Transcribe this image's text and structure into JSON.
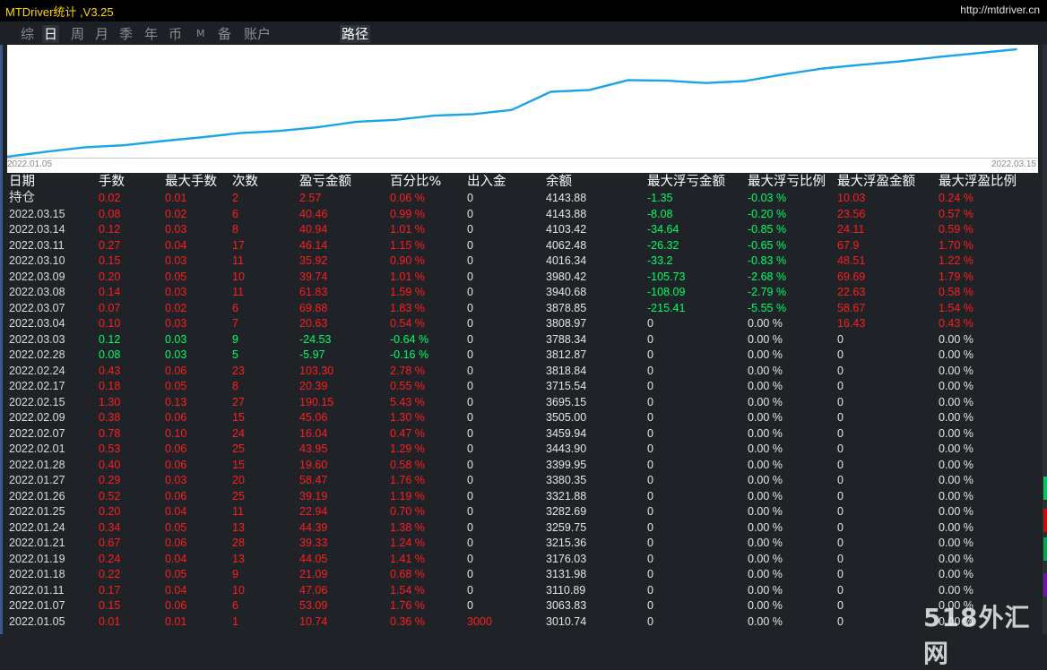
{
  "window": {
    "title": "MTDriver统计 ,V3.25",
    "url": "http://mtdriver.cn"
  },
  "tabs": [
    {
      "label": "综",
      "active": false
    },
    {
      "label": "日",
      "active": true
    },
    {
      "label": "周",
      "active": false
    },
    {
      "label": "月",
      "active": false
    },
    {
      "label": "季",
      "active": false
    },
    {
      "label": "年",
      "active": false
    },
    {
      "label": "币",
      "active": false
    },
    {
      "label": "M",
      "active": false
    },
    {
      "label": "备",
      "active": false
    },
    {
      "label": "账户",
      "active": false
    },
    {
      "label": "路径",
      "active": true
    }
  ],
  "chart_data": {
    "type": "line",
    "x": [
      "2022.01.05",
      "2022.01.07",
      "2022.01.11",
      "2022.01.18",
      "2022.01.19",
      "2022.01.21",
      "2022.01.24",
      "2022.01.25",
      "2022.01.26",
      "2022.01.27",
      "2022.01.28",
      "2022.02.01",
      "2022.02.07",
      "2022.02.09",
      "2022.02.15",
      "2022.02.17",
      "2022.02.24",
      "2022.02.28",
      "2022.03.03",
      "2022.03.04",
      "2022.03.07",
      "2022.03.08",
      "2022.03.09",
      "2022.03.10",
      "2022.03.11",
      "2022.03.14",
      "2022.03.15"
    ],
    "series": [
      {
        "values": [
          3010.74,
          3063.83,
          3110.89,
          3131.98,
          3176.03,
          3215.36,
          3259.75,
          3282.69,
          3321.88,
          3380.35,
          3399.95,
          3443.9,
          3459.94,
          3505.0,
          3695.15,
          3715.54,
          3818.84,
          3812.87,
          3788.34,
          3808.97,
          3878.85,
          3940.68,
          3980.42,
          4016.34,
          4062.48,
          4103.42,
          4143.88
        ],
        "color": "#1aa3e8"
      }
    ],
    "start_label": "2022.01.05",
    "end_label": "2022.03.15",
    "grid": false
  },
  "table": {
    "headers": [
      "日期",
      "手数",
      "最大手数",
      "次数",
      "盈亏金额",
      "百分比%",
      "出入金",
      "余额",
      "最大浮亏金额",
      "最大浮亏比例",
      "最大浮盈金额",
      "最大浮盈比例"
    ],
    "rows": [
      [
        "持仓",
        "0.02",
        "0.01",
        "2",
        "2.57",
        "0.06 %",
        "0",
        "4143.88",
        "-1.35",
        "-0.03 %",
        "10.03",
        "0.24 %"
      ],
      [
        "2022.03.15",
        "0.08",
        "0.02",
        "6",
        "40.46",
        "0.99 %",
        "0",
        "4143.88",
        "-8.08",
        "-0.20 %",
        "23.56",
        "0.57 %"
      ],
      [
        "2022.03.14",
        "0.12",
        "0.03",
        "8",
        "40.94",
        "1.01 %",
        "0",
        "4103.42",
        "-34.64",
        "-0.85 %",
        "24.11",
        "0.59 %"
      ],
      [
        "2022.03.11",
        "0.27",
        "0.04",
        "17",
        "46.14",
        "1.15 %",
        "0",
        "4062.48",
        "-26.32",
        "-0.65 %",
        "67.9",
        "1.70 %"
      ],
      [
        "2022.03.10",
        "0.15",
        "0.03",
        "11",
        "35.92",
        "0.90 %",
        "0",
        "4016.34",
        "-33.2",
        "-0.83 %",
        "48.51",
        "1.22 %"
      ],
      [
        "2022.03.09",
        "0.20",
        "0.05",
        "10",
        "39.74",
        "1.01 %",
        "0",
        "3980.42",
        "-105.73",
        "-2.68 %",
        "69.69",
        "1.79 %"
      ],
      [
        "2022.03.08",
        "0.14",
        "0.03",
        "11",
        "61.83",
        "1.59 %",
        "0",
        "3940.68",
        "-108.09",
        "-2.79 %",
        "22.63",
        "0.58 %"
      ],
      [
        "2022.03.07",
        "0.07",
        "0.02",
        "6",
        "69.88",
        "1.83 %",
        "0",
        "3878.85",
        "-215.41",
        "-5.55 %",
        "58.67",
        "1.54 %"
      ],
      [
        "2022.03.04",
        "0.10",
        "0.03",
        "7",
        "20.63",
        "0.54 %",
        "0",
        "3808.97",
        "0",
        "0.00 %",
        "16.43",
        "0.43 %"
      ],
      [
        "2022.03.03",
        "0.12",
        "0.03",
        "9",
        "-24.53",
        "-0.64 %",
        "0",
        "3788.34",
        "0",
        "0.00 %",
        "0",
        "0.00 %"
      ],
      [
        "2022.02.28",
        "0.08",
        "0.03",
        "5",
        "-5.97",
        "-0.16 %",
        "0",
        "3812.87",
        "0",
        "0.00 %",
        "0",
        "0.00 %"
      ],
      [
        "2022.02.24",
        "0.43",
        "0.06",
        "23",
        "103.30",
        "2.78 %",
        "0",
        "3818.84",
        "0",
        "0.00 %",
        "0",
        "0.00 %"
      ],
      [
        "2022.02.17",
        "0.18",
        "0.05",
        "8",
        "20.39",
        "0.55 %",
        "0",
        "3715.54",
        "0",
        "0.00 %",
        "0",
        "0.00 %"
      ],
      [
        "2022.02.15",
        "1.30",
        "0.13",
        "27",
        "190.15",
        "5.43 %",
        "0",
        "3695.15",
        "0",
        "0.00 %",
        "0",
        "0.00 %"
      ],
      [
        "2022.02.09",
        "0.38",
        "0.06",
        "15",
        "45.06",
        "1.30 %",
        "0",
        "3505.00",
        "0",
        "0.00 %",
        "0",
        "0.00 %"
      ],
      [
        "2022.02.07",
        "0.78",
        "0.10",
        "24",
        "16.04",
        "0.47 %",
        "0",
        "3459.94",
        "0",
        "0.00 %",
        "0",
        "0.00 %"
      ],
      [
        "2022.02.01",
        "0.53",
        "0.06",
        "25",
        "43.95",
        "1.29 %",
        "0",
        "3443.90",
        "0",
        "0.00 %",
        "0",
        "0.00 %"
      ],
      [
        "2022.01.28",
        "0.40",
        "0.06",
        "15",
        "19.60",
        "0.58 %",
        "0",
        "3399.95",
        "0",
        "0.00 %",
        "0",
        "0.00 %"
      ],
      [
        "2022.01.27",
        "0.29",
        "0.03",
        "20",
        "58.47",
        "1.76 %",
        "0",
        "3380.35",
        "0",
        "0.00 %",
        "0",
        "0.00 %"
      ],
      [
        "2022.01.26",
        "0.52",
        "0.06",
        "25",
        "39.19",
        "1.19 %",
        "0",
        "3321.88",
        "0",
        "0.00 %",
        "0",
        "0.00 %"
      ],
      [
        "2022.01.25",
        "0.20",
        "0.04",
        "11",
        "22.94",
        "0.70 %",
        "0",
        "3282.69",
        "0",
        "0.00 %",
        "0",
        "0.00 %"
      ],
      [
        "2022.01.24",
        "0.34",
        "0.05",
        "13",
        "44.39",
        "1.38 %",
        "0",
        "3259.75",
        "0",
        "0.00 %",
        "0",
        "0.00 %"
      ],
      [
        "2022.01.21",
        "0.67",
        "0.06",
        "28",
        "39.33",
        "1.24 %",
        "0",
        "3215.36",
        "0",
        "0.00 %",
        "0",
        "0.00 %"
      ],
      [
        "2022.01.19",
        "0.24",
        "0.04",
        "13",
        "44.05",
        "1.41 %",
        "0",
        "3176.03",
        "0",
        "0.00 %",
        "0",
        "0.00 %"
      ],
      [
        "2022.01.18",
        "0.22",
        "0.05",
        "9",
        "21.09",
        "0.68 %",
        "0",
        "3131.98",
        "0",
        "0.00 %",
        "0",
        "0.00 %"
      ],
      [
        "2022.01.11",
        "0.17",
        "0.04",
        "10",
        "47.06",
        "1.54 %",
        "0",
        "3110.89",
        "0",
        "0.00 %",
        "0",
        "0.00 %"
      ],
      [
        "2022.01.07",
        "0.15",
        "0.06",
        "6",
        "53.09",
        "1.76 %",
        "0",
        "3063.83",
        "0",
        "0.00 %",
        "0",
        "0.00 %"
      ],
      [
        "2022.01.05",
        "0.01",
        "0.01",
        "1",
        "10.74",
        "0.36 %",
        "3000",
        "3010.74",
        "0",
        "0.00 %",
        "0",
        "0.00 %"
      ]
    ]
  },
  "watermark": "518外汇网",
  "colors": {
    "positive": "#ff1e1e",
    "negative": "#00ff66",
    "line": "#1aa3e8",
    "title": "#ffd700"
  }
}
